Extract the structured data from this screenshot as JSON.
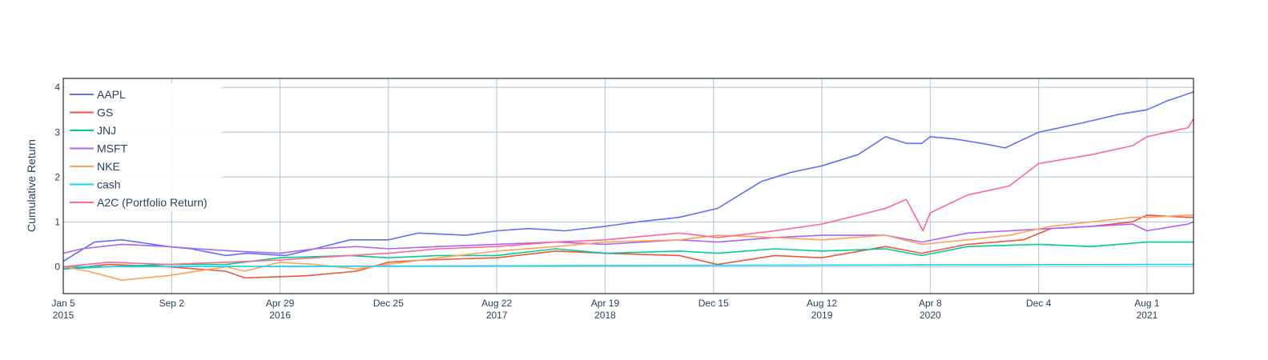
{
  "chart_data": {
    "type": "line",
    "title": "",
    "xlabel": "",
    "ylabel": "Cumulative Return",
    "x_range": [
      "2015-01-05",
      "2021-11-12"
    ],
    "ylim": [
      -0.6,
      4.2
    ],
    "grid": true,
    "legend_position": "top-left",
    "x_ticks": [
      {
        "date": "2015-01-05",
        "line1": "Jan 5",
        "line2": "2015"
      },
      {
        "date": "2015-09-02",
        "line1": "Sep 2",
        "line2": ""
      },
      {
        "date": "2016-04-29",
        "line1": "Apr 29",
        "line2": "2016"
      },
      {
        "date": "2016-12-25",
        "line1": "Dec 25",
        "line2": ""
      },
      {
        "date": "2017-08-22",
        "line1": "Aug 22",
        "line2": "2017"
      },
      {
        "date": "2018-04-19",
        "line1": "Apr 19",
        "line2": "2018"
      },
      {
        "date": "2018-12-15",
        "line1": "Dec 15",
        "line2": ""
      },
      {
        "date": "2019-08-12",
        "line1": "Aug 12",
        "line2": "2019"
      },
      {
        "date": "2020-04-08",
        "line1": "Apr 8",
        "line2": "2020"
      },
      {
        "date": "2020-12-04",
        "line1": "Dec 4",
        "line2": ""
      },
      {
        "date": "2021-08-01",
        "line1": "Aug 1",
        "line2": "2021"
      }
    ],
    "y_ticks": [
      0,
      1,
      2,
      3,
      4
    ],
    "series": [
      {
        "name": "AAPL",
        "color": "#636efa",
        "x": [
          "2015-01-05",
          "2015-03-15",
          "2015-05-15",
          "2015-08-25",
          "2015-10-15",
          "2015-12-31",
          "2016-02-15",
          "2016-05-12",
          "2016-07-15",
          "2016-10-01",
          "2016-12-25",
          "2017-03-01",
          "2017-06-15",
          "2017-08-22",
          "2017-11-01",
          "2018-01-20",
          "2018-04-19",
          "2018-06-30",
          "2018-09-30",
          "2018-12-24",
          "2019-03-31",
          "2019-06-03",
          "2019-08-12",
          "2019-10-31",
          "2019-12-31",
          "2020-02-15",
          "2020-03-20",
          "2020-04-08",
          "2020-06-01",
          "2020-08-01",
          "2020-09-21",
          "2020-12-04",
          "2021-03-08",
          "2021-06-01",
          "2021-08-01",
          "2021-09-15",
          "2021-10-15",
          "2021-11-12"
        ],
        "y": [
          0.12,
          0.55,
          0.6,
          0.45,
          0.4,
          0.25,
          0.3,
          0.25,
          0.4,
          0.6,
          0.6,
          0.75,
          0.7,
          0.8,
          0.85,
          0.8,
          0.9,
          1.0,
          1.1,
          1.3,
          1.9,
          2.1,
          2.25,
          2.5,
          2.9,
          2.75,
          2.75,
          2.9,
          2.85,
          2.75,
          2.65,
          3.0,
          3.2,
          3.4,
          3.5,
          3.7,
          3.8,
          3.9
        ]
      },
      {
        "name": "GS",
        "color": "#ef553b",
        "x": [
          "2015-01-05",
          "2015-04-15",
          "2015-08-25",
          "2015-12-31",
          "2016-02-11",
          "2016-06-30",
          "2016-10-15",
          "2016-12-25",
          "2017-03-15",
          "2017-08-22",
          "2017-12-31",
          "2018-04-19",
          "2018-09-30",
          "2018-12-24",
          "2019-04-30",
          "2019-08-12",
          "2019-12-31",
          "2020-03-20",
          "2020-06-30",
          "2020-10-31",
          "2020-12-31",
          "2021-03-31",
          "2021-06-30",
          "2021-08-01",
          "2021-10-31",
          "2021-11-12"
        ],
        "y": [
          -0.05,
          0.05,
          0.0,
          -0.1,
          -0.25,
          -0.2,
          -0.1,
          0.1,
          0.15,
          0.2,
          0.35,
          0.3,
          0.25,
          0.05,
          0.25,
          0.2,
          0.45,
          0.3,
          0.5,
          0.6,
          0.85,
          0.9,
          1.0,
          1.15,
          1.1,
          1.1
        ]
      },
      {
        "name": "JNJ",
        "color": "#00cc96",
        "x": [
          "2015-01-05",
          "2015-04-15",
          "2015-08-25",
          "2015-12-31",
          "2016-04-29",
          "2016-09-30",
          "2016-12-25",
          "2017-04-15",
          "2017-08-22",
          "2017-12-31",
          "2018-04-19",
          "2018-09-30",
          "2018-12-24",
          "2019-04-30",
          "2019-08-12",
          "2019-12-31",
          "2020-03-20",
          "2020-06-30",
          "2020-12-04",
          "2021-03-31",
          "2021-08-01",
          "2021-11-12"
        ],
        "y": [
          -0.05,
          0.0,
          0.05,
          0.05,
          0.2,
          0.25,
          0.2,
          0.25,
          0.25,
          0.4,
          0.3,
          0.35,
          0.3,
          0.4,
          0.35,
          0.4,
          0.25,
          0.45,
          0.5,
          0.45,
          0.55,
          0.55
        ]
      },
      {
        "name": "MSFT",
        "color": "#ab63fa",
        "x": [
          "2015-01-05",
          "2015-02-15",
          "2015-05-15",
          "2015-08-25",
          "2015-11-01",
          "2016-01-15",
          "2016-04-29",
          "2016-07-15",
          "2016-10-15",
          "2016-12-25",
          "2017-04-15",
          "2017-08-22",
          "2017-12-31",
          "2018-04-19",
          "2018-09-30",
          "2018-12-24",
          "2019-04-30",
          "2019-08-12",
          "2019-12-31",
          "2020-03-20",
          "2020-06-30",
          "2020-09-30",
          "2020-12-31",
          "2021-03-31",
          "2021-06-30",
          "2021-08-01",
          "2021-10-31",
          "2021-11-12"
        ],
        "y": [
          0.3,
          0.4,
          0.5,
          0.45,
          0.4,
          0.35,
          0.3,
          0.4,
          0.45,
          0.4,
          0.45,
          0.5,
          0.55,
          0.5,
          0.6,
          0.55,
          0.65,
          0.7,
          0.7,
          0.55,
          0.75,
          0.8,
          0.85,
          0.9,
          0.95,
          0.8,
          0.95,
          1.0
        ]
      },
      {
        "name": "NKE",
        "color": "#ffa15a",
        "x": [
          "2015-01-05",
          "2015-03-01",
          "2015-05-15",
          "2015-08-25",
          "2015-12-31",
          "2016-02-11",
          "2016-04-29",
          "2016-07-15",
          "2016-10-15",
          "2016-12-25",
          "2017-04-15",
          "2017-08-22",
          "2017-12-31",
          "2018-04-19",
          "2018-09-30",
          "2018-12-24",
          "2019-04-30",
          "2019-08-12",
          "2019-12-31",
          "2020-03-20",
          "2020-06-30",
          "2020-09-30",
          "2020-12-31",
          "2021-03-31",
          "2021-06-30",
          "2021-08-01",
          "2021-10-31",
          "2021-11-12"
        ],
        "y": [
          0.0,
          -0.1,
          -0.3,
          -0.2,
          0.0,
          -0.1,
          0.1,
          0.05,
          -0.05,
          0.05,
          0.2,
          0.35,
          0.45,
          0.55,
          0.6,
          0.7,
          0.65,
          0.6,
          0.7,
          0.5,
          0.6,
          0.7,
          0.9,
          1.0,
          1.1,
          1.1,
          1.15,
          1.15
        ]
      },
      {
        "name": "cash",
        "color": "#19d3f3",
        "x": [
          "2015-01-05",
          "2016-06-01",
          "2017-08-22",
          "2018-12-15",
          "2020-04-08",
          "2021-08-01",
          "2021-11-12"
        ],
        "y": [
          0.0,
          0.01,
          0.02,
          0.03,
          0.04,
          0.05,
          0.05
        ]
      },
      {
        "name": "A2C (Portfolio Return)",
        "color": "#ff6692",
        "x": [
          "2015-01-05",
          "2015-04-15",
          "2015-08-25",
          "2015-12-31",
          "2016-04-29",
          "2016-09-30",
          "2016-12-25",
          "2017-04-15",
          "2017-08-22",
          "2017-12-31",
          "2018-04-19",
          "2018-09-30",
          "2018-12-24",
          "2019-04-30",
          "2019-08-12",
          "2019-12-31",
          "2020-02-15",
          "2020-03-23",
          "2020-04-08",
          "2020-06-30",
          "2020-09-30",
          "2020-12-04",
          "2021-03-31",
          "2021-06-30",
          "2021-08-01",
          "2021-09-15",
          "2021-10-31",
          "2021-11-12"
        ],
        "y": [
          0.0,
          0.1,
          0.05,
          0.1,
          0.15,
          0.25,
          0.3,
          0.4,
          0.45,
          0.55,
          0.6,
          0.75,
          0.65,
          0.8,
          0.95,
          1.3,
          1.5,
          0.8,
          1.2,
          1.6,
          1.8,
          2.3,
          2.5,
          2.7,
          2.9,
          3.0,
          3.1,
          3.3
        ]
      }
    ]
  }
}
